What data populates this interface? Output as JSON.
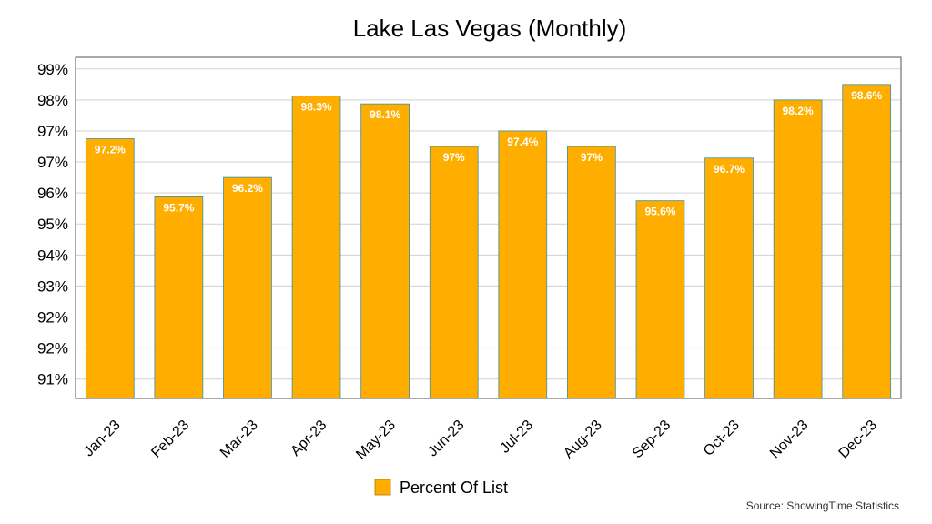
{
  "chart_data": {
    "type": "bar",
    "title": "Lake Las Vegas (Monthly)",
    "xlabel": "",
    "ylabel": "",
    "categories": [
      "Jan-23",
      "Feb-23",
      "Mar-23",
      "Apr-23",
      "May-23",
      "Jun-23",
      "Jul-23",
      "Aug-23",
      "Sep-23",
      "Oct-23",
      "Nov-23",
      "Dec-23"
    ],
    "series": [
      {
        "name": "Percent Of List",
        "color": "#FFAE00",
        "values": [
          97.2,
          95.7,
          96.2,
          98.3,
          98.1,
          97.0,
          97.4,
          97.0,
          95.6,
          96.7,
          98.2,
          98.6
        ],
        "labels": [
          "97.2%",
          "95.7%",
          "96.2%",
          "98.3%",
          "98.1%",
          "97%",
          "97.4%",
          "97%",
          "95.6%",
          "96.7%",
          "98.2%",
          "98.6%"
        ]
      }
    ],
    "ylim": [
      90.5,
      99.3
    ],
    "yticks": [
      {
        "value": 91.0,
        "label": "91%"
      },
      {
        "value": 91.8,
        "label": "92%"
      },
      {
        "value": 92.6,
        "label": "92%"
      },
      {
        "value": 93.4,
        "label": "93%"
      },
      {
        "value": 94.2,
        "label": "94%"
      },
      {
        "value": 95.0,
        "label": "95%"
      },
      {
        "value": 95.8,
        "label": "96%"
      },
      {
        "value": 96.6,
        "label": "97%"
      },
      {
        "value": 97.4,
        "label": "97%"
      },
      {
        "value": 98.2,
        "label": "98%"
      },
      {
        "value": 99.0,
        "label": "99%"
      }
    ],
    "grid": true,
    "legend_position": "bottom-center",
    "source": "Source: ShowingTime Statistics"
  }
}
